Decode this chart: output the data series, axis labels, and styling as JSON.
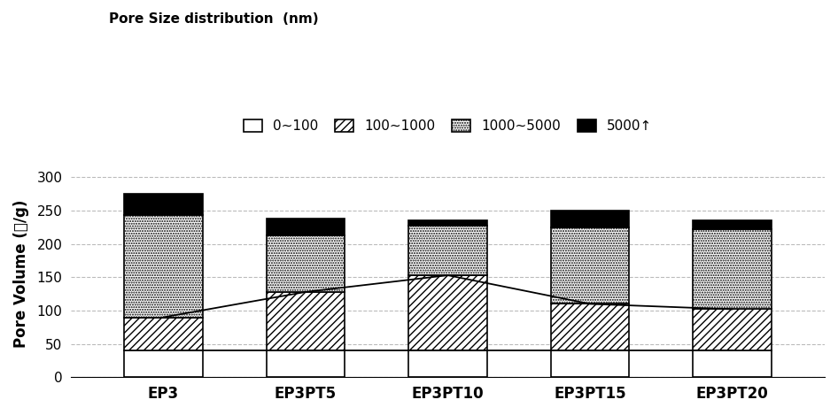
{
  "categories": [
    "EP3",
    "EP3PT5",
    "EP3PT10",
    "EP3PT15",
    "EP3PT20"
  ],
  "seg0": [
    40,
    40,
    40,
    40,
    40
  ],
  "seg1": [
    50,
    88,
    113,
    70,
    62
  ],
  "seg2": [
    153,
    85,
    75,
    115,
    120
  ],
  "seg3": [
    32,
    25,
    7,
    25,
    13
  ],
  "line1_y": [
    90,
    128,
    153,
    110,
    102
  ],
  "line2_y": [
    40,
    40,
    40,
    40,
    40
  ],
  "ylabel": "Pore Volume (mm³/g)",
  "legend_title": "Pore Size distribution  (nm)",
  "legend_labels": [
    "0~100",
    "100~1000",
    "1000~5000",
    "5000↑"
  ],
  "ylim": [
    0,
    310
  ],
  "yticks": [
    0,
    50,
    100,
    150,
    200,
    250,
    300
  ],
  "bar_width": 0.55,
  "grid_color": "#bbbbbb"
}
